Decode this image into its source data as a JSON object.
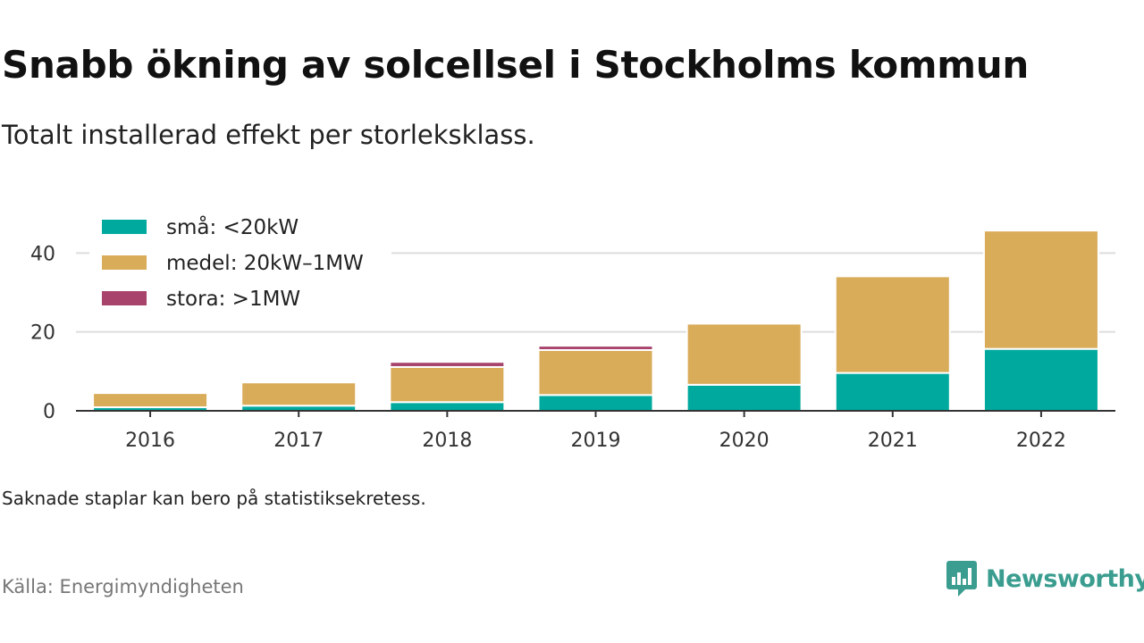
{
  "title": "Snabb ökning av solcellsel i Stockholms kommun",
  "subtitle": "Totalt installerad effekt per storleksklass.",
  "note": "Saknade staplar kan bero på statistiksekretess.",
  "source": "Källa: Energimyndigheten",
  "brand": {
    "name": "Newsworthy",
    "icon": "newsworthy-logo-icon",
    "color": "#3a9d8f"
  },
  "chart_data": {
    "type": "bar",
    "stacked": true,
    "categories": [
      "2016",
      "2017",
      "2018",
      "2019",
      "2020",
      "2021",
      "2022"
    ],
    "series": [
      {
        "name": "små: <20kW",
        "color": "#00a99d",
        "values": [
          0.9,
          1.3,
          2.2,
          4.0,
          6.6,
          9.6,
          15.7
        ]
      },
      {
        "name": "medel: 20kW–1MW",
        "color": "#d9ac5a",
        "values": [
          3.6,
          5.9,
          8.9,
          11.4,
          15.5,
          24.5,
          30.0
        ]
      },
      {
        "name": "stora: >1MW",
        "color": "#a8436b",
        "values": [
          0,
          0,
          1.3,
          1.1,
          0,
          0,
          0
        ]
      }
    ],
    "yticks": [
      0,
      20,
      40
    ],
    "ylim": [
      0,
      48
    ],
    "grid": true,
    "legend": "top-left"
  }
}
